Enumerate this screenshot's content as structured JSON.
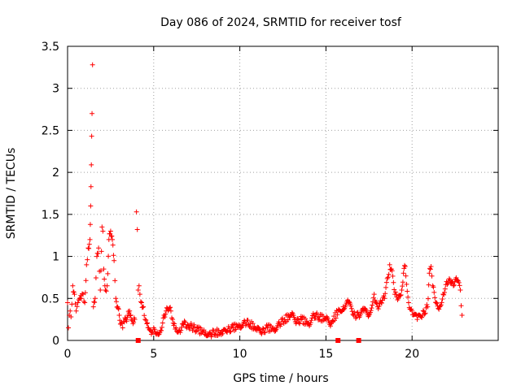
{
  "chart_data": {
    "type": "scatter",
    "title": "Day 086 of 2024, SRMTID for receiver tosf",
    "xlabel": "GPS time / hours",
    "ylabel": "SRMTID / TECUs",
    "xlim": [
      0,
      25
    ],
    "ylim": [
      0,
      3.5
    ],
    "x_ticks": [
      0,
      5,
      10,
      15,
      20
    ],
    "x_tick_labels": [
      "0",
      "5",
      "10",
      "15",
      "20"
    ],
    "y_ticks": [
      0,
      0.5,
      1,
      1.5,
      2,
      2.5,
      3,
      3.5
    ],
    "y_tick_labels": [
      "0",
      "0.5",
      "1",
      "1.5",
      "2",
      "2.5",
      "3",
      "3.5"
    ],
    "grid": true,
    "marker": "+",
    "colors": {
      "series": "#ff0000",
      "grid": "#a0a0a0",
      "axes": "#000000"
    },
    "series": [
      {
        "name": "SRMTID",
        "x": [
          0.0,
          0.05,
          0.1,
          0.15,
          0.2,
          0.3,
          0.4,
          0.5,
          0.6,
          0.7,
          0.8,
          0.9,
          1.0,
          1.1,
          1.2,
          1.3,
          1.32,
          1.34,
          1.36,
          1.38,
          1.4,
          1.42,
          1.45,
          1.5,
          1.6,
          1.7,
          1.8,
          1.9,
          2.0,
          2.05,
          2.1,
          2.2,
          2.3,
          2.4,
          2.5,
          2.6,
          2.7,
          2.8,
          2.9,
          3.0,
          3.1,
          3.2,
          3.3,
          3.4,
          3.5,
          3.6,
          3.7,
          3.8,
          3.9,
          4.0,
          4.05,
          4.1,
          4.15,
          4.2,
          4.3,
          4.4,
          4.5,
          4.6,
          4.7,
          4.8,
          4.9,
          5.0,
          5.2,
          5.4,
          5.6,
          5.8,
          6.0,
          6.1,
          6.2,
          6.3,
          6.5,
          6.7,
          7.0,
          7.3,
          7.6,
          8.0,
          8.3,
          8.6,
          9.0,
          9.3,
          9.6,
          10.0,
          10.3,
          10.6,
          11.0,
          11.3,
          11.6,
          12.0,
          12.3,
          12.6,
          13.0,
          13.3,
          13.6,
          14.0,
          14.3,
          14.6,
          15.0,
          15.3,
          15.7,
          16.0,
          16.3,
          16.6,
          16.9,
          17.2,
          17.5,
          17.8,
          18.0,
          18.2,
          18.4,
          18.6,
          18.7,
          18.8,
          19.0,
          19.2,
          19.4,
          19.5,
          19.6,
          19.8,
          20.0,
          20.3,
          20.6,
          20.9,
          21.0,
          21.1,
          21.2,
          21.4,
          21.6,
          21.8,
          22.0,
          22.2,
          22.4,
          22.6,
          22.8,
          22.9
        ],
        "y": [
          0.45,
          0.15,
          0.3,
          0.35,
          0.28,
          0.65,
          0.55,
          0.35,
          0.45,
          0.5,
          0.5,
          0.55,
          0.45,
          0.9,
          1.1,
          1.2,
          1.38,
          1.6,
          1.83,
          2.09,
          2.43,
          2.7,
          3.28,
          0.4,
          0.5,
          1.0,
          1.1,
          0.6,
          1.35,
          1.3,
          0.85,
          0.6,
          0.65,
          1.2,
          1.3,
          1.2,
          0.95,
          0.5,
          0.4,
          0.3,
          0.2,
          0.15,
          0.22,
          0.25,
          0.3,
          0.35,
          0.25,
          0.2,
          0.25,
          1.53,
          1.32,
          0.6,
          0.65,
          0.55,
          0.45,
          0.4,
          0.25,
          0.2,
          0.15,
          0.12,
          0.1,
          0.15,
          0.1,
          0.12,
          0.3,
          0.38,
          0.35,
          0.25,
          0.2,
          0.15,
          0.12,
          0.2,
          0.18,
          0.15,
          0.12,
          0.1,
          0.08,
          0.1,
          0.08,
          0.12,
          0.15,
          0.18,
          0.22,
          0.2,
          0.12,
          0.1,
          0.15,
          0.14,
          0.2,
          0.25,
          0.3,
          0.22,
          0.25,
          0.2,
          0.3,
          0.28,
          0.25,
          0.2,
          0.35,
          0.4,
          0.45,
          0.3,
          0.3,
          0.35,
          0.3,
          0.55,
          0.4,
          0.45,
          0.5,
          0.75,
          0.9,
          0.85,
          0.55,
          0.5,
          0.6,
          0.8,
          0.88,
          0.45,
          0.35,
          0.25,
          0.3,
          0.4,
          0.8,
          0.88,
          0.65,
          0.45,
          0.4,
          0.55,
          0.7,
          0.72,
          0.65,
          0.72,
          0.6,
          0.3
        ],
        "zero_points_x": [
          4.1,
          15.7,
          16.9
        ]
      }
    ]
  }
}
